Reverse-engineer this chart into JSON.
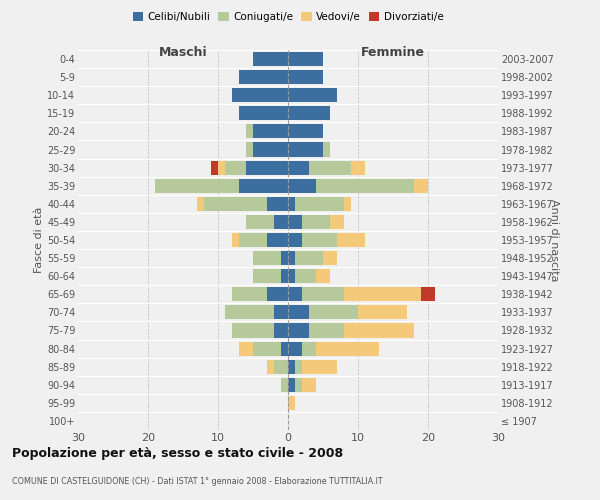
{
  "age_groups": [
    "100+",
    "95-99",
    "90-94",
    "85-89",
    "80-84",
    "75-79",
    "70-74",
    "65-69",
    "60-64",
    "55-59",
    "50-54",
    "45-49",
    "40-44",
    "35-39",
    "30-34",
    "25-29",
    "20-24",
    "15-19",
    "10-14",
    "5-9",
    "0-4"
  ],
  "birth_years": [
    "≤ 1907",
    "1908-1912",
    "1913-1917",
    "1918-1922",
    "1923-1927",
    "1928-1932",
    "1933-1937",
    "1938-1942",
    "1943-1947",
    "1948-1952",
    "1953-1957",
    "1958-1962",
    "1963-1967",
    "1968-1972",
    "1973-1977",
    "1978-1982",
    "1983-1987",
    "1988-1992",
    "1993-1997",
    "1998-2002",
    "2003-2007"
  ],
  "males": {
    "celibi": [
      0,
      0,
      0,
      0,
      1,
      2,
      2,
      3,
      1,
      1,
      3,
      2,
      3,
      7,
      6,
      5,
      5,
      7,
      8,
      7,
      5
    ],
    "coniugati": [
      0,
      0,
      1,
      2,
      4,
      6,
      7,
      5,
      4,
      4,
      4,
      4,
      9,
      12,
      3,
      1,
      1,
      0,
      0,
      0,
      0
    ],
    "vedovi": [
      0,
      0,
      0,
      1,
      2,
      0,
      0,
      0,
      0,
      0,
      1,
      0,
      1,
      0,
      1,
      0,
      0,
      0,
      0,
      0,
      0
    ],
    "divorziati": [
      0,
      0,
      0,
      0,
      0,
      0,
      0,
      0,
      0,
      0,
      0,
      0,
      0,
      0,
      1,
      0,
      0,
      0,
      0,
      0,
      0
    ]
  },
  "females": {
    "nubili": [
      0,
      0,
      1,
      1,
      2,
      3,
      3,
      2,
      1,
      1,
      2,
      2,
      1,
      4,
      3,
      5,
      5,
      6,
      7,
      5,
      5
    ],
    "coniugate": [
      0,
      0,
      1,
      1,
      2,
      5,
      7,
      6,
      3,
      4,
      5,
      4,
      7,
      14,
      6,
      1,
      0,
      0,
      0,
      0,
      0
    ],
    "vedove": [
      0,
      1,
      2,
      5,
      9,
      10,
      7,
      11,
      2,
      2,
      4,
      2,
      1,
      2,
      2,
      0,
      0,
      0,
      0,
      0,
      0
    ],
    "divorziate": [
      0,
      0,
      0,
      0,
      0,
      0,
      0,
      2,
      0,
      0,
      0,
      0,
      0,
      0,
      0,
      0,
      0,
      0,
      0,
      0,
      0
    ]
  },
  "colors": {
    "celibi": "#3c6fa0",
    "coniugati": "#b5c99a",
    "vedovi": "#f5c97a",
    "divorziati": "#c0392b"
  },
  "legend_labels": [
    "Celibi/Nubili",
    "Coniugati/e",
    "Vedovi/e",
    "Divorziati/e"
  ],
  "title": "Popolazione per età, sesso e stato civile - 2008",
  "subtitle": "COMUNE DI CASTELGUIDONE (CH) - Dati ISTAT 1° gennaio 2008 - Elaborazione TUTTITALIA.IT",
  "xlabel_left": "Maschi",
  "xlabel_right": "Femmine",
  "ylabel_left": "Fasce di età",
  "ylabel_right": "Anni di nascita",
  "xlim": 30,
  "bg_color": "#f0f0f0",
  "bar_height": 0.78
}
